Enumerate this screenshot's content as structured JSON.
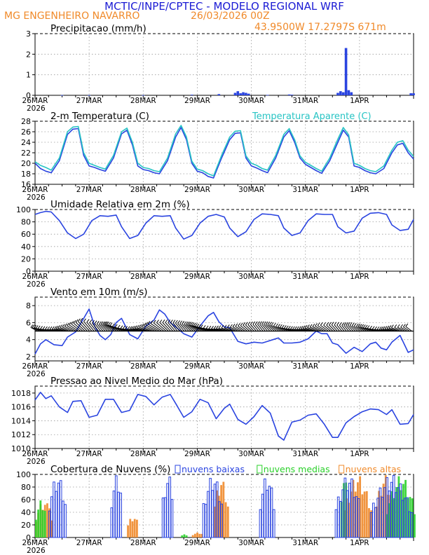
{
  "header": {
    "title": "MCTIC/INPE/CPTEC - MODELO REGIONAL WRF",
    "station": "MG ENGENHEIRO NAVARRO",
    "run": "26/03/2026 00Z",
    "coords": "43.9500W 17.2797S 671m"
  },
  "colors": {
    "title": "#1a1ad4",
    "orange": "#f08a2a",
    "blue": "#2a44e0",
    "cyan": "#27c4c4",
    "green": "#2ad02a",
    "black": "#000000",
    "grid": "#9a9a9a"
  },
  "x_axis": {
    "labels": [
      "26MAR",
      "27MAR",
      "28MAR",
      "29MAR",
      "30MAR",
      "31MAR",
      "1APR"
    ],
    "year": "2026",
    "days": 7
  },
  "chart_data": [
    {
      "id": "precip",
      "type": "bar",
      "title": "Precipitacao (mm/h)",
      "ylim": [
        0,
        3
      ],
      "yticks": [
        0,
        1,
        2,
        3
      ],
      "series": [
        {
          "name": "precip",
          "color": "#2a44e0",
          "points": [
            [
              0.5,
              0.01
            ],
            [
              1.0,
              0.01
            ],
            [
              2.0,
              0.01
            ],
            [
              2.9,
              0.03
            ],
            [
              3.4,
              0.06
            ],
            [
              3.7,
              0.12
            ],
            [
              3.75,
              0.2
            ],
            [
              3.8,
              0.1
            ],
            [
              3.85,
              0.15
            ],
            [
              3.9,
              0.12
            ],
            [
              3.95,
              0.08
            ],
            [
              4.3,
              0.02
            ],
            [
              4.7,
              0.04
            ],
            [
              4.75,
              0.03
            ],
            [
              5.6,
              0.12
            ],
            [
              5.65,
              0.2
            ],
            [
              5.7,
              0.15
            ],
            [
              5.75,
              2.3
            ],
            [
              5.8,
              0.25
            ],
            [
              5.85,
              0.15
            ],
            [
              6.95,
              0.1
            ],
            [
              7.0,
              0.1
            ]
          ]
        }
      ]
    },
    {
      "id": "temperature",
      "type": "line",
      "title": "2-m Temperatura (C)",
      "legend": "Temperatura Aparente (C)",
      "ylim": [
        16,
        28
      ],
      "yticks": [
        16,
        18,
        20,
        22,
        24,
        26,
        28
      ],
      "series": [
        {
          "name": "Temperatura",
          "color": "#2a44e0",
          "x": [
            0,
            0.1,
            0.2,
            0.3,
            0.45,
            0.6,
            0.7,
            0.8,
            0.9,
            1.0,
            1.1,
            1.2,
            1.3,
            1.45,
            1.6,
            1.7,
            1.8,
            1.9,
            2.0,
            2.1,
            2.2,
            2.3,
            2.45,
            2.6,
            2.7,
            2.8,
            2.9,
            3.0,
            3.1,
            3.2,
            3.3,
            3.45,
            3.6,
            3.7,
            3.8,
            3.9,
            4.0,
            4.1,
            4.2,
            4.3,
            4.45,
            4.6,
            4.7,
            4.8,
            4.9,
            5.0,
            5.1,
            5.2,
            5.3,
            5.45,
            5.6,
            5.7,
            5.8,
            5.9,
            6.0,
            6.1,
            6.2,
            6.3,
            6.45,
            6.6,
            6.7,
            6.8,
            6.9,
            7.0
          ],
          "y": [
            20,
            19,
            18.5,
            18.2,
            20.5,
            25.5,
            26.5,
            26.6,
            21.5,
            19.5,
            19.2,
            18.8,
            18.5,
            21,
            25.6,
            26.3,
            23.5,
            19.5,
            18.8,
            18.6,
            18.2,
            18.0,
            20.5,
            25,
            26.8,
            24.5,
            20,
            18.5,
            18.2,
            17.5,
            17.2,
            21,
            24.5,
            25.7,
            25.8,
            21,
            19.5,
            19.1,
            18.6,
            18.2,
            21,
            25,
            26.2,
            24,
            21,
            19.8,
            19.2,
            18.6,
            18.1,
            20.5,
            24,
            26.3,
            25,
            19.5,
            19.2,
            18.6,
            18.2,
            18.0,
            19,
            22,
            23.5,
            23.8,
            22,
            20.8
          ]
        },
        {
          "name": "Temperatura Aparente",
          "color": "#27c4c4",
          "x": [
            0,
            0.1,
            0.2,
            0.3,
            0.45,
            0.6,
            0.7,
            0.8,
            0.9,
            1.0,
            1.1,
            1.2,
            1.3,
            1.45,
            1.6,
            1.7,
            1.8,
            1.9,
            2.0,
            2.1,
            2.2,
            2.3,
            2.45,
            2.6,
            2.7,
            2.8,
            2.9,
            3.0,
            3.1,
            3.2,
            3.3,
            3.45,
            3.6,
            3.7,
            3.8,
            3.9,
            4.0,
            4.1,
            4.2,
            4.3,
            4.45,
            4.6,
            4.7,
            4.8,
            4.9,
            5.0,
            5.1,
            5.2,
            5.3,
            5.45,
            5.6,
            5.7,
            5.8,
            5.9,
            6.0,
            6.1,
            6.2,
            6.3,
            6.45,
            6.6,
            6.7,
            6.8,
            6.9,
            7.0
          ],
          "y": [
            20.3,
            19.6,
            19.2,
            18.7,
            21,
            26,
            26.9,
            27.0,
            22,
            20,
            19.6,
            19.2,
            18.9,
            21.5,
            26,
            26.7,
            24,
            20,
            19.2,
            19.0,
            18.6,
            18.4,
            21,
            25.6,
            27.2,
            25,
            20.4,
            18.9,
            18.6,
            18.0,
            17.6,
            21.5,
            25,
            26.1,
            26.2,
            21.4,
            20,
            19.6,
            19.0,
            18.7,
            21.5,
            25.5,
            26.6,
            24.5,
            21.4,
            20.2,
            19.6,
            19.0,
            18.5,
            21,
            24.6,
            26.8,
            25.4,
            20,
            19.6,
            19.0,
            18.6,
            18.4,
            19.5,
            22.5,
            24,
            24.3,
            22.5,
            21.3
          ]
        }
      ]
    },
    {
      "id": "humidity",
      "type": "line",
      "title": "Umidade Relativa em 2m (%)",
      "ylim": [
        0,
        100
      ],
      "yticks": [
        0,
        20,
        40,
        60,
        80,
        100
      ],
      "series": [
        {
          "name": "Umidade",
          "color": "#2a44e0",
          "x": [
            0,
            0.1,
            0.2,
            0.3,
            0.45,
            0.6,
            0.75,
            0.9,
            1.05,
            1.2,
            1.35,
            1.5,
            1.6,
            1.75,
            1.9,
            2.05,
            2.2,
            2.35,
            2.5,
            2.6,
            2.75,
            2.9,
            3.05,
            3.2,
            3.35,
            3.5,
            3.6,
            3.75,
            3.9,
            4.05,
            4.2,
            4.35,
            4.5,
            4.6,
            4.75,
            4.9,
            5.05,
            5.2,
            5.35,
            5.5,
            5.6,
            5.75,
            5.9,
            6.05,
            6.2,
            6.35,
            6.5,
            6.6,
            6.75,
            6.9,
            7.0
          ],
          "y": [
            92,
            95,
            97,
            96,
            82,
            62,
            53,
            60,
            82,
            90,
            89,
            91,
            72,
            53,
            58,
            78,
            90,
            89,
            90,
            70,
            52,
            58,
            78,
            89,
            92,
            88,
            70,
            56,
            64,
            84,
            93,
            92,
            90,
            70,
            58,
            62,
            82,
            93,
            92,
            92,
            72,
            62,
            65,
            86,
            94,
            95,
            92,
            75,
            66,
            68,
            84
          ]
        }
      ]
    },
    {
      "id": "wind",
      "type": "line",
      "title": "Vento em 10m (m/s)",
      "ylim": [
        1.5,
        9
      ],
      "yticks": [
        2,
        4,
        6,
        8
      ],
      "series": [
        {
          "name": "Vento",
          "color": "#2a44e0",
          "x": [
            0,
            0.1,
            0.2,
            0.35,
            0.5,
            0.6,
            0.75,
            0.9,
            1.0,
            1.1,
            1.2,
            1.3,
            1.4,
            1.5,
            1.6,
            1.75,
            1.9,
            2.05,
            2.2,
            2.3,
            2.4,
            2.5,
            2.6,
            2.75,
            2.9,
            3.05,
            3.2,
            3.3,
            3.4,
            3.5,
            3.6,
            3.75,
            3.9,
            4.05,
            4.2,
            4.3,
            4.4,
            4.5,
            4.6,
            4.75,
            4.9,
            5.05,
            5.2,
            5.3,
            5.4,
            5.5,
            5.6,
            5.75,
            5.9,
            6.05,
            6.2,
            6.3,
            6.4,
            6.5,
            6.6,
            6.75,
            6.9,
            7.0
          ],
          "y": [
            2.3,
            3.5,
            4.0,
            3.4,
            3.3,
            4.3,
            4.9,
            6.5,
            7.6,
            5.6,
            4.5,
            4.0,
            4.6,
            6.0,
            6.5,
            4.6,
            4.1,
            5.6,
            6.3,
            7.5,
            7.0,
            6.0,
            5.5,
            4.7,
            4.3,
            5.6,
            6.8,
            7.2,
            6.1,
            5.5,
            5.4,
            3.8,
            3.5,
            3.7,
            3.6,
            3.8,
            4.0,
            4.2,
            3.6,
            3.6,
            3.7,
            4.1,
            5.0,
            4.7,
            4.7,
            3.6,
            3.4,
            2.4,
            3.1,
            2.6,
            3.5,
            3.7,
            3.0,
            2.8,
            3.7,
            4.5,
            2.5,
            2.8
          ]
        }
      ],
      "barbs_level": 5
    },
    {
      "id": "pressure",
      "type": "line",
      "title": "Pressao ao Nivel Medio do Mar (hPa)",
      "ylim": [
        1010,
        1019
      ],
      "yticks": [
        1010,
        1012,
        1014,
        1016,
        1018
      ],
      "series": [
        {
          "name": "Pressao",
          "color": "#2a44e0",
          "x": [
            0,
            0.1,
            0.2,
            0.3,
            0.45,
            0.6,
            0.7,
            0.85,
            1.0,
            1.15,
            1.3,
            1.45,
            1.6,
            1.75,
            1.9,
            2.05,
            2.2,
            2.35,
            2.5,
            2.6,
            2.75,
            2.9,
            3.05,
            3.2,
            3.35,
            3.5,
            3.6,
            3.75,
            3.9,
            4.05,
            4.2,
            4.35,
            4.5,
            4.6,
            4.75,
            4.9,
            5.05,
            5.2,
            5.35,
            5.5,
            5.6,
            5.75,
            5.9,
            6.05,
            6.2,
            6.35,
            6.5,
            6.6,
            6.75,
            6.9,
            7.0
          ],
          "y": [
            1017,
            1018.1,
            1017.2,
            1017.6,
            1016,
            1015.2,
            1016.8,
            1016.9,
            1014.5,
            1014.8,
            1017.1,
            1017.1,
            1015.2,
            1015.5,
            1017.8,
            1017.5,
            1016.3,
            1017.4,
            1017.8,
            1016.5,
            1014.5,
            1015.3,
            1017.1,
            1016.6,
            1014.3,
            1015.8,
            1016.4,
            1014.2,
            1013.5,
            1014.6,
            1016.2,
            1015.1,
            1011.8,
            1011.2,
            1013.8,
            1014.1,
            1014.8,
            1015.0,
            1013.5,
            1011.6,
            1011.6,
            1013.7,
            1014.6,
            1015.3,
            1015.7,
            1015.6,
            1014.9,
            1015.6,
            1013.5,
            1013.6,
            1014.9
          ]
        }
      ]
    },
    {
      "id": "clouds",
      "type": "bar",
      "title": "Cobertura de Nuvens (%)",
      "ylim": [
        0,
        100
      ],
      "yticks": [
        0,
        20,
        40,
        60,
        80,
        100
      ],
      "series": [
        {
          "name": "nuvens baixas",
          "color": "#2a44e0",
          "style": "outline",
          "groups": [
            [
              0.25,
              0.55,
              100
            ],
            [
              1.4,
              1.6,
              100
            ],
            [
              2.35,
              2.55,
              100
            ],
            [
              3.1,
              3.45,
              100
            ],
            [
              4.15,
              4.4,
              100
            ],
            [
              5.55,
              6.0,
              100
            ],
            [
              6.2,
              6.95,
              100
            ]
          ]
        },
        {
          "name": "nuvens medias",
          "color": "#2ad02a",
          "style": "filled",
          "groups": [
            [
              0.0,
              0.2,
              60
            ],
            [
              2.7,
              2.8,
              5
            ],
            [
              5.65,
              5.75,
              100
            ],
            [
              6.5,
              7.0,
              100
            ]
          ]
        },
        {
          "name": "nuvens altas",
          "color": "#f08a2a",
          "style": "filled",
          "groups": [
            [
              0.0,
              0.3,
              60
            ],
            [
              1.7,
              1.9,
              35
            ],
            [
              2.9,
              3.1,
              8
            ],
            [
              3.3,
              3.55,
              95
            ],
            [
              5.7,
              6.2,
              100
            ],
            [
              6.3,
              6.6,
              100
            ]
          ]
        }
      ]
    }
  ]
}
